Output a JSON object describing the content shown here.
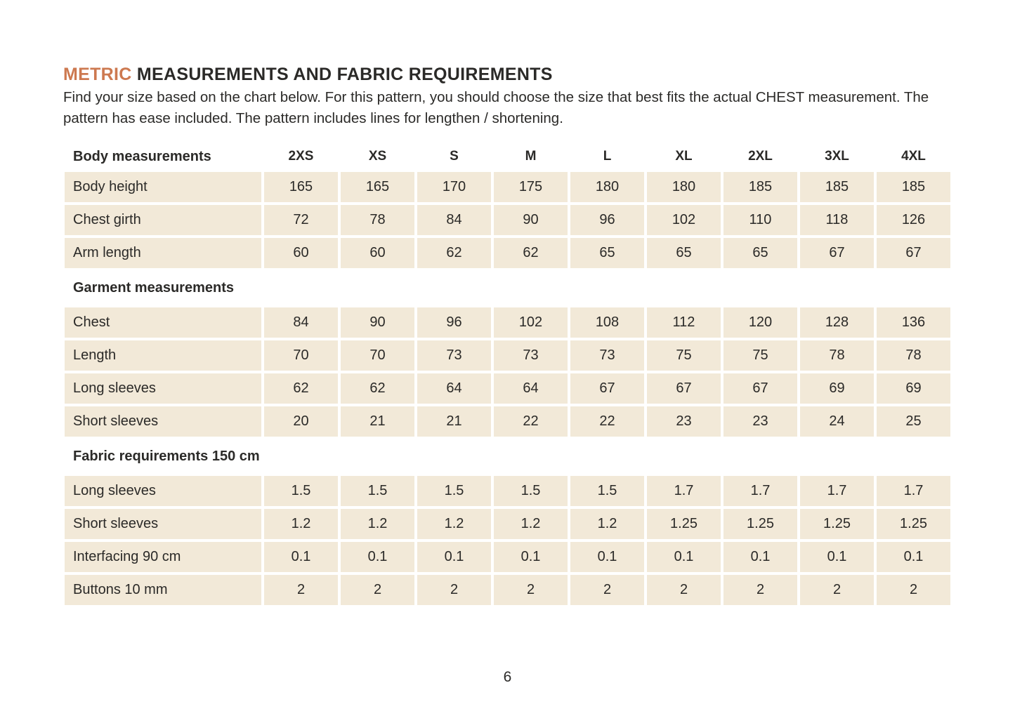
{
  "colors": {
    "accent_orange": "#cd7950",
    "cell_beige": "#f2e9d8",
    "text_dark": "#2b2a28"
  },
  "header": {
    "title_accent": "METRIC",
    "title_rest": " MEASUREMENTS AND FABRIC REQUIREMENTS",
    "intro": "Find your size based on the chart below. For this pattern, you should choose the size that best fits the actual CHEST measurement. The pattern has ease included. The pattern includes lines for lengthen / shortening."
  },
  "size_table": {
    "header_label": "Body measurements",
    "sizes": [
      "2XS",
      "XS",
      "S",
      "M",
      "L",
      "XL",
      "2XL",
      "3XL",
      "4XL"
    ],
    "sections": [
      {
        "heading": null,
        "rows": [
          {
            "label": "Body height",
            "values": [
              "165",
              "165",
              "170",
              "175",
              "180",
              "180",
              "185",
              "185",
              "185"
            ]
          },
          {
            "label": "Chest girth",
            "values": [
              "72",
              "78",
              "84",
              "90",
              "96",
              "102",
              "110",
              "118",
              "126"
            ]
          },
          {
            "label": "Arm length",
            "values": [
              "60",
              "60",
              "62",
              "62",
              "65",
              "65",
              "65",
              "67",
              "67"
            ]
          }
        ]
      },
      {
        "heading": "Garment measurements",
        "rows": [
          {
            "label": "Chest",
            "values": [
              "84",
              "90",
              "96",
              "102",
              "108",
              "112",
              "120",
              "128",
              "136"
            ]
          },
          {
            "label": "Length",
            "values": [
              "70",
              "70",
              "73",
              "73",
              "73",
              "75",
              "75",
              "78",
              "78"
            ]
          },
          {
            "label": "Long sleeves",
            "values": [
              "62",
              "62",
              "64",
              "64",
              "67",
              "67",
              "67",
              "69",
              "69"
            ]
          },
          {
            "label": "Short sleeves",
            "values": [
              "20",
              "21",
              "21",
              "22",
              "22",
              "23",
              "23",
              "24",
              "25"
            ]
          }
        ]
      },
      {
        "heading": "Fabric requirements 150 cm",
        "rows": [
          {
            "label": "Long sleeves",
            "values": [
              "1.5",
              "1.5",
              "1.5",
              "1.5",
              "1.5",
              "1.7",
              "1.7",
              "1.7",
              "1.7"
            ]
          },
          {
            "label": "Short sleeves",
            "values": [
              "1.2",
              "1.2",
              "1.2",
              "1.2",
              "1.2",
              "1.25",
              "1.25",
              "1.25",
              "1.25"
            ]
          },
          {
            "label": "Interfacing 90 cm",
            "values": [
              "0.1",
              "0.1",
              "0.1",
              "0.1",
              "0.1",
              "0.1",
              "0.1",
              "0.1",
              "0.1"
            ]
          },
          {
            "label": "Buttons 10 mm",
            "values": [
              "2",
              "2",
              "2",
              "2",
              "2",
              "2",
              "2",
              "2",
              "2"
            ]
          }
        ]
      }
    ]
  },
  "footer": {
    "page_number": "6"
  }
}
